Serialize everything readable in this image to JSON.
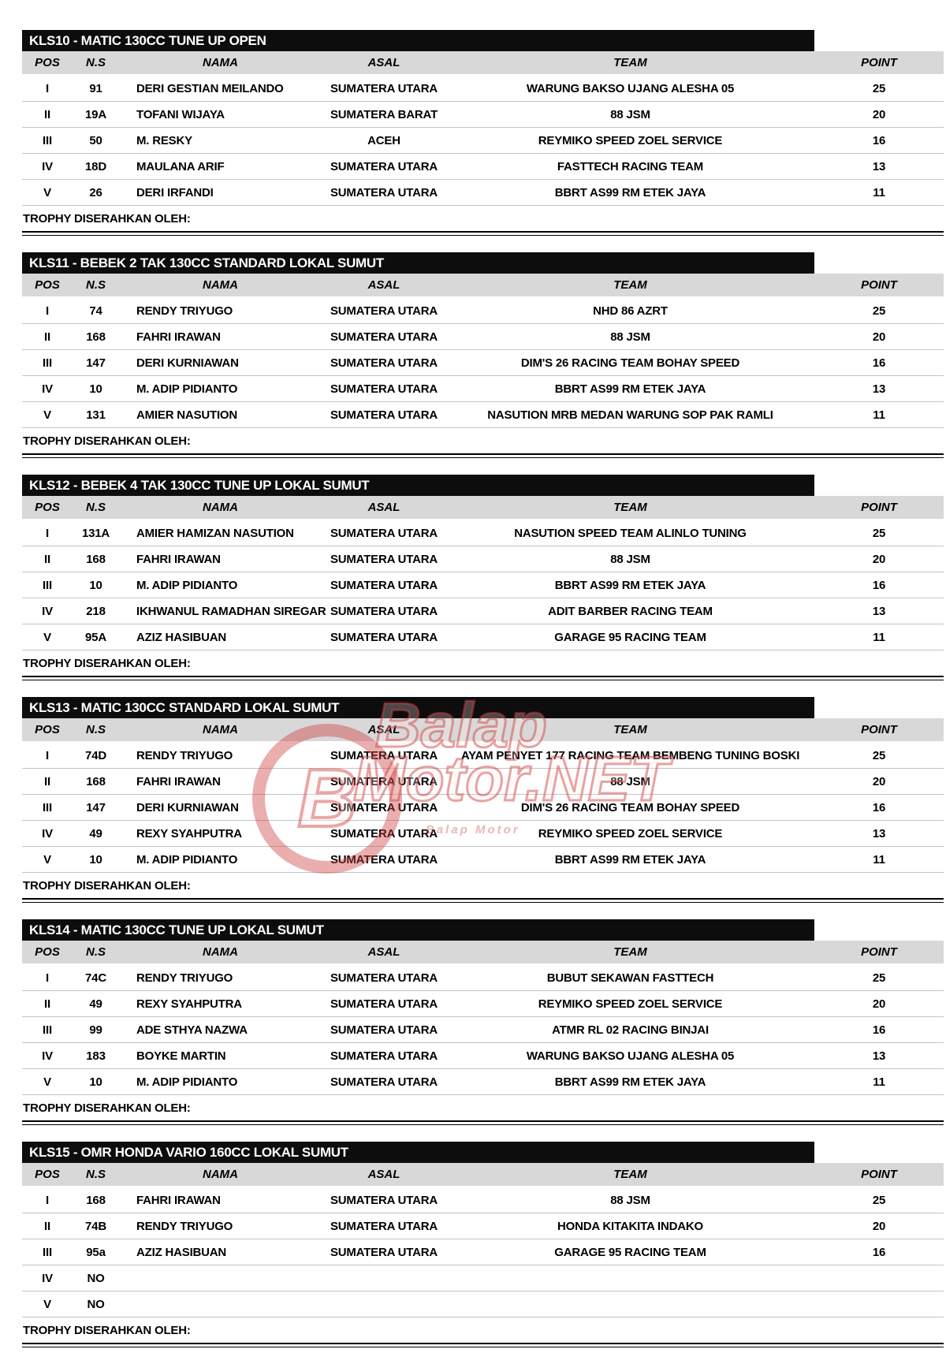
{
  "page": {
    "headers": [
      "POS",
      "N.S",
      "NAMA",
      "ASAL",
      "TEAM",
      "POINT"
    ],
    "trophy_label": "TROPHY DISERAHKAN OLEH:"
  },
  "watermark": {
    "letter": "B",
    "line1": "Balap",
    "line2": "Motor.NET",
    "tagline": "Balap Motor",
    "color": "#ce3e3e"
  },
  "sections": [
    {
      "title": "KLS10 - MATIC 130CC TUNE UP OPEN",
      "rows": [
        {
          "pos": "I",
          "ns": "91",
          "nama": "DERI GESTIAN MEILANDO",
          "asal": "SUMATERA UTARA",
          "team": "WARUNG BAKSO UJANG ALESHA 05",
          "point": "25"
        },
        {
          "pos": "II",
          "ns": "19A",
          "nama": "TOFANI WIJAYA",
          "asal": "SUMATERA BARAT",
          "team": "88 JSM",
          "point": "20"
        },
        {
          "pos": "III",
          "ns": "50",
          "nama": "M. RESKY",
          "asal": "ACEH",
          "team": "REYMIKO SPEED ZOEL SERVICE",
          "point": "16"
        },
        {
          "pos": "IV",
          "ns": "18D",
          "nama": "MAULANA ARIF",
          "asal": "SUMATERA UTARA",
          "team": "FASTTECH RACING TEAM",
          "point": "13"
        },
        {
          "pos": "V",
          "ns": "26",
          "nama": "DERI IRFANDI",
          "asal": "SUMATERA UTARA",
          "team": "BBRT AS99 RM ETEK JAYA",
          "point": "11"
        }
      ]
    },
    {
      "title": "KLS11 - BEBEK 2 TAK 130CC STANDARD LOKAL SUMUT",
      "rows": [
        {
          "pos": "I",
          "ns": "74",
          "nama": "RENDY TRIYUGO",
          "asal": "SUMATERA UTARA",
          "team": "NHD 86 AZRT",
          "point": "25"
        },
        {
          "pos": "II",
          "ns": "168",
          "nama": "FAHRI IRAWAN",
          "asal": "SUMATERA UTARA",
          "team": "88 JSM",
          "point": "20"
        },
        {
          "pos": "III",
          "ns": "147",
          "nama": "DERI KURNIAWAN",
          "asal": "SUMATERA UTARA",
          "team": "DIM'S 26 RACING TEAM BOHAY SPEED",
          "point": "16"
        },
        {
          "pos": "IV",
          "ns": "10",
          "nama": "M. ADIP PIDIANTO",
          "asal": "SUMATERA UTARA",
          "team": "BBRT AS99 RM ETEK JAYA",
          "point": "13"
        },
        {
          "pos": "V",
          "ns": "131",
          "nama": "AMIER NASUTION",
          "asal": "SUMATERA UTARA",
          "team": "NASUTION MRB MEDAN WARUNG SOP PAK RAMLI",
          "point": "11"
        }
      ]
    },
    {
      "title": "KLS12 - BEBEK 4 TAK 130CC TUNE UP LOKAL SUMUT",
      "rows": [
        {
          "pos": "I",
          "ns": "131A",
          "nama": "AMIER HAMIZAN NASUTION",
          "asal": "SUMATERA UTARA",
          "team": "NASUTION SPEED TEAM ALINLO TUNING",
          "point": "25"
        },
        {
          "pos": "II",
          "ns": "168",
          "nama": "FAHRI IRAWAN",
          "asal": "SUMATERA UTARA",
          "team": "88 JSM",
          "point": "20"
        },
        {
          "pos": "III",
          "ns": "10",
          "nama": "M. ADIP PIDIANTO",
          "asal": "SUMATERA UTARA",
          "team": "BBRT AS99 RM ETEK JAYA",
          "point": "16"
        },
        {
          "pos": "IV",
          "ns": "218",
          "nama": "IKHWANUL RAMADHAN SIREGAR",
          "asal": "SUMATERA UTARA",
          "team": "ADIT BARBER RACING TEAM",
          "point": "13"
        },
        {
          "pos": "V",
          "ns": "95A",
          "nama": "AZIZ HASIBUAN",
          "asal": "SUMATERA UTARA",
          "team": "GARAGE 95 RACING TEAM",
          "point": "11"
        }
      ]
    },
    {
      "title": "KLS13 - MATIC 130CC STANDARD LOKAL SUMUT",
      "rows": [
        {
          "pos": "I",
          "ns": "74D",
          "nama": "RENDY TRIYUGO",
          "asal": "SUMATERA UTARA",
          "team": "AYAM PENYET 177 RACING TEAM BEMBENG TUNING BOSKI",
          "point": "25"
        },
        {
          "pos": "II",
          "ns": "168",
          "nama": "FAHRI IRAWAN",
          "asal": "SUMATERA UTARA",
          "team": "88 JSM",
          "point": "20"
        },
        {
          "pos": "III",
          "ns": "147",
          "nama": "DERI KURNIAWAN",
          "asal": "SUMATERA UTARA",
          "team": "DIM'S 26 RACING TEAM BOHAY SPEED",
          "point": "16"
        },
        {
          "pos": "IV",
          "ns": "49",
          "nama": "REXY SYAHPUTRA",
          "asal": "SUMATERA UTARA",
          "team": "REYMIKO SPEED ZOEL SERVICE",
          "point": "13"
        },
        {
          "pos": "V",
          "ns": "10",
          "nama": "M. ADIP PIDIANTO",
          "asal": "SUMATERA UTARA",
          "team": "BBRT AS99 RM ETEK JAYA",
          "point": "11"
        }
      ]
    },
    {
      "title": "KLS14 - MATIC 130CC TUNE UP LOKAL SUMUT",
      "rows": [
        {
          "pos": "I",
          "ns": "74C",
          "nama": "RENDY TRIYUGO",
          "asal": "SUMATERA UTARA",
          "team": "BUBUT SEKAWAN FASTTECH",
          "point": "25"
        },
        {
          "pos": "II",
          "ns": "49",
          "nama": "REXY SYAHPUTRA",
          "asal": "SUMATERA UTARA",
          "team": "REYMIKO SPEED ZOEL SERVICE",
          "point": "20"
        },
        {
          "pos": "III",
          "ns": "99",
          "nama": "ADE STHYA NAZWA",
          "asal": "SUMATERA UTARA",
          "team": "ATMR RL 02 RACING BINJAI",
          "point": "16"
        },
        {
          "pos": "IV",
          "ns": "183",
          "nama": "BOYKE MARTIN",
          "asal": "SUMATERA UTARA",
          "team": "WARUNG BAKSO UJANG ALESHA 05",
          "point": "13"
        },
        {
          "pos": "V",
          "ns": "10",
          "nama": "M. ADIP PIDIANTO",
          "asal": "SUMATERA UTARA",
          "team": "BBRT AS99 RM ETEK JAYA",
          "point": "11"
        }
      ]
    },
    {
      "title": "KLS15 - OMR HONDA VARIO 160CC LOKAL SUMUT",
      "rows": [
        {
          "pos": "I",
          "ns": "168",
          "nama": "FAHRI IRAWAN",
          "asal": "SUMATERA UTARA",
          "team": "88 JSM",
          "point": "25"
        },
        {
          "pos": "II",
          "ns": "74B",
          "nama": "RENDY TRIYUGO",
          "asal": "SUMATERA UTARA",
          "team": "HONDA KITAKITA INDAKO",
          "point": "20"
        },
        {
          "pos": "III",
          "ns": "95a",
          "nama": "AZIZ HASIBUAN",
          "asal": "SUMATERA UTARA",
          "team": "GARAGE 95 RACING TEAM",
          "point": "16"
        },
        {
          "pos": "IV",
          "ns": "NO",
          "nama": "",
          "asal": "",
          "team": "",
          "point": ""
        },
        {
          "pos": "V",
          "ns": "NO",
          "nama": "",
          "asal": "",
          "team": "",
          "point": ""
        }
      ]
    }
  ]
}
